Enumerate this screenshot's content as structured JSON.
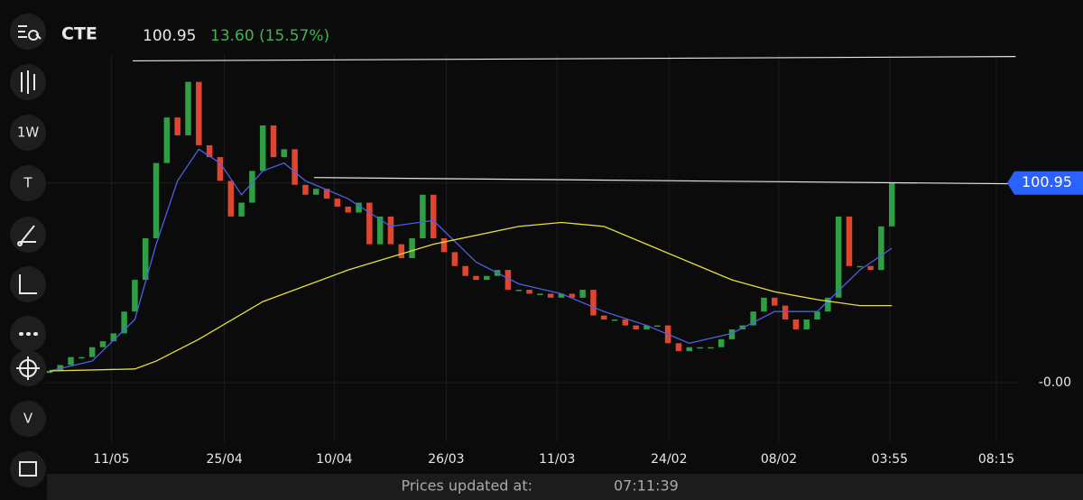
{
  "header": {
    "symbol": "CTE",
    "price": "100.95",
    "change": "13.60 (15.57%)"
  },
  "toolbar": [
    "1W",
    "T",
    "V"
  ],
  "footer": {
    "label": "Prices updated at:",
    "time": "07:11:39"
  },
  "chart_data": {
    "type": "candlestick",
    "x": [
      0,
      1,
      2,
      3,
      4,
      5,
      6,
      7,
      8,
      9,
      10,
      11,
      12,
      13,
      14,
      15,
      16,
      17,
      18,
      19,
      20,
      21,
      22,
      23,
      24,
      25,
      26,
      27,
      28,
      29,
      30,
      31,
      32,
      33,
      34,
      35,
      36,
      37,
      38,
      39,
      40,
      41,
      42,
      43,
      44,
      45,
      46,
      47,
      48,
      49,
      50,
      51,
      52,
      53,
      54,
      55,
      56,
      57,
      58,
      59,
      60,
      61,
      62,
      63,
      64,
      65,
      66,
      67,
      68,
      69,
      70,
      71,
      72,
      73,
      74,
      75,
      76,
      77,
      78,
      79
    ],
    "open": [
      5,
      6,
      9,
      13,
      13,
      18,
      21,
      25,
      36,
      52,
      73,
      111,
      134,
      125,
      152,
      120,
      114,
      102,
      84,
      91,
      107,
      130,
      114,
      118,
      100,
      95,
      98,
      93,
      89,
      86,
      91,
      70,
      84,
      70,
      63,
      73,
      95,
      73,
      66,
      59,
      54,
      52,
      54,
      57,
      47,
      47,
      45,
      45,
      43,
      45,
      43,
      47,
      34,
      32,
      32,
      29,
      27,
      29,
      29,
      20,
      16,
      18,
      18,
      18,
      22,
      27,
      29,
      36,
      43,
      39,
      32,
      27,
      32,
      36,
      43,
      84,
      59,
      59,
      57,
      79
    ],
    "close": [
      6,
      9,
      13,
      13,
      18,
      21,
      25,
      36,
      52,
      73,
      111,
      134,
      125,
      152,
      120,
      114,
      102,
      84,
      91,
      107,
      130,
      114,
      118,
      100,
      95,
      98,
      93,
      89,
      86,
      91,
      70,
      84,
      70,
      63,
      73,
      95,
      73,
      66,
      59,
      54,
      52,
      54,
      57,
      47,
      47,
      45,
      45,
      43,
      45,
      43,
      47,
      34,
      32,
      32,
      29,
      27,
      29,
      29,
      20,
      16,
      18,
      18,
      18,
      22,
      27,
      29,
      36,
      43,
      39,
      32,
      27,
      32,
      36,
      43,
      84,
      59,
      59,
      57,
      79,
      100.95
    ],
    "up_color": "#2ea043",
    "down_color": "#e0452f",
    "lines": [
      {
        "color": "#4b5fe8",
        "x": [
          0,
          4,
          8,
          10,
          12,
          14,
          16,
          18,
          20,
          22,
          24,
          28,
          32,
          36,
          40,
          44,
          48,
          52,
          56,
          60,
          64,
          68,
          72,
          76,
          79
        ],
        "values": [
          6,
          11,
          32,
          70,
          102,
          118,
          111,
          95,
          107,
          111,
          102,
          93,
          79,
          82,
          61,
          50,
          45,
          36,
          29,
          20,
          25,
          36,
          36,
          57,
          68
        ]
      },
      {
        "color": "#e5e03a",
        "x": [
          0,
          8,
          10,
          14,
          20,
          28,
          36,
          44,
          48,
          52,
          56,
          60,
          64,
          68,
          72,
          76,
          79
        ],
        "values": [
          6,
          7,
          11,
          22,
          41,
          57,
          70,
          79,
          81,
          79,
          70,
          61,
          52,
          46,
          42,
          39,
          39
        ]
      }
    ],
    "trendlines": [
      {
        "color": "#e6e6e6",
        "x": [
          7.8,
          90.6
        ],
        "y": [
          162.6,
          164.8
        ]
      },
      {
        "color": "#e6e6e6",
        "x": [
          24.8,
          90.6
        ],
        "y": [
          103.7,
          100.5
        ]
      }
    ],
    "last_price": {
      "value": 100.95,
      "label": "100.95",
      "color": "#2962ff"
    },
    "xlim": [
      -0.5,
      91
    ],
    "ylim": [
      -30,
      166
    ],
    "xticks": [
      {
        "value": 5.8,
        "label": "11/05"
      },
      {
        "value": 16.4,
        "label": "25/04"
      },
      {
        "value": 26.7,
        "label": "10/04"
      },
      {
        "value": 37.2,
        "label": "26/03"
      },
      {
        "value": 47.6,
        "label": "11/03"
      },
      {
        "value": 58.1,
        "label": "24/02"
      },
      {
        "value": 68.4,
        "label": "08/02"
      },
      {
        "value": 78.8,
        "label": "03:55"
      },
      {
        "value": 88.8,
        "label": "08:15"
      }
    ],
    "yticks": [
      {
        "value": 0,
        "label": "-0.00"
      }
    ]
  }
}
